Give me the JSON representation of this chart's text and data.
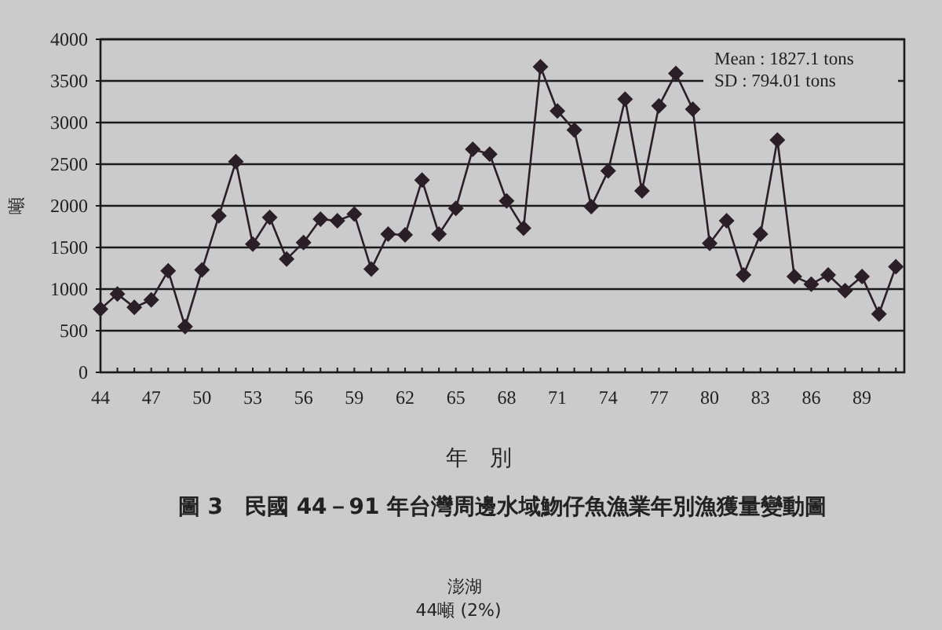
{
  "chart_data": {
    "type": "line",
    "title": "圖 3　民國 44－91 年台灣周邊水域魩仔魚漁業年別漁獲量變動圖",
    "xlabel": "年　別",
    "ylabel": "噸",
    "annotations": [
      "Mean : 1827.1  tons",
      "SD   : 794.01  tons",
      "澎湖",
      "44噸 (2%)"
    ],
    "x": [
      44,
      45,
      46,
      47,
      48,
      49,
      50,
      51,
      52,
      53,
      54,
      55,
      56,
      57,
      58,
      59,
      60,
      61,
      62,
      63,
      64,
      65,
      66,
      67,
      68,
      69,
      70,
      71,
      72,
      73,
      74,
      75,
      76,
      77,
      78,
      79,
      80,
      81,
      82,
      83,
      84,
      85,
      86,
      87,
      88,
      89,
      90,
      91
    ],
    "series": [
      {
        "color": "#2a1f26",
        "values": [
          760,
          940,
          780,
          870,
          1220,
          550,
          1230,
          1880,
          2530,
          1540,
          1860,
          1360,
          1560,
          1840,
          1820,
          1900,
          1240,
          1660,
          1650,
          2310,
          1660,
          1970,
          2680,
          2620,
          2060,
          1730,
          3670,
          3140,
          2910,
          1990,
          2420,
          3280,
          2180,
          3200,
          3590,
          3160,
          1550,
          1820,
          1170,
          1660,
          2790,
          1150,
          1060,
          1170,
          980,
          1150,
          700,
          1270
        ]
      }
    ],
    "xlim": [
      44,
      91.5
    ],
    "xticks": [
      44,
      {
        "value": 45,
        "label": null
      },
      {
        "value": 46,
        "label": null
      },
      47,
      {
        "value": 48,
        "label": null
      },
      {
        "value": 49,
        "label": null
      },
      50,
      {
        "value": 51,
        "label": null
      },
      {
        "value": 52,
        "label": null
      },
      53,
      {
        "value": 54,
        "label": null
      },
      {
        "value": 55,
        "label": null
      },
      56,
      {
        "value": 57,
        "label": null
      },
      {
        "value": 58,
        "label": null
      },
      59,
      {
        "value": 60,
        "label": null
      },
      {
        "value": 61,
        "label": null
      },
      62,
      {
        "value": 63,
        "label": null
      },
      {
        "value": 64,
        "label": null
      },
      65,
      {
        "value": 66,
        "label": null
      },
      {
        "value": 67,
        "label": null
      },
      68,
      {
        "value": 69,
        "label": null
      },
      {
        "value": 70,
        "label": null
      },
      71,
      {
        "value": 72,
        "label": null
      },
      {
        "value": 73,
        "label": null
      },
      74,
      {
        "value": 75,
        "label": null
      },
      {
        "value": 76,
        "label": null
      },
      77,
      {
        "value": 78,
        "label": null
      },
      {
        "value": 79,
        "label": null
      },
      80,
      {
        "value": 81,
        "label": null
      },
      {
        "value": 82,
        "label": null
      },
      83,
      {
        "value": 84,
        "label": null
      },
      {
        "value": 85,
        "label": null
      },
      86,
      {
        "value": 87,
        "label": null
      },
      {
        "value": 88,
        "label": null
      },
      89,
      {
        "value": 90,
        "label": null
      },
      {
        "value": 91,
        "label": null
      }
    ],
    "ylim": [
      0,
      4000
    ],
    "yticks": [
      0,
      500,
      1000,
      1500,
      2000,
      2500,
      3000,
      3500,
      4000
    ],
    "grid": "y",
    "marker": "diamond",
    "line_style": "solid"
  }
}
